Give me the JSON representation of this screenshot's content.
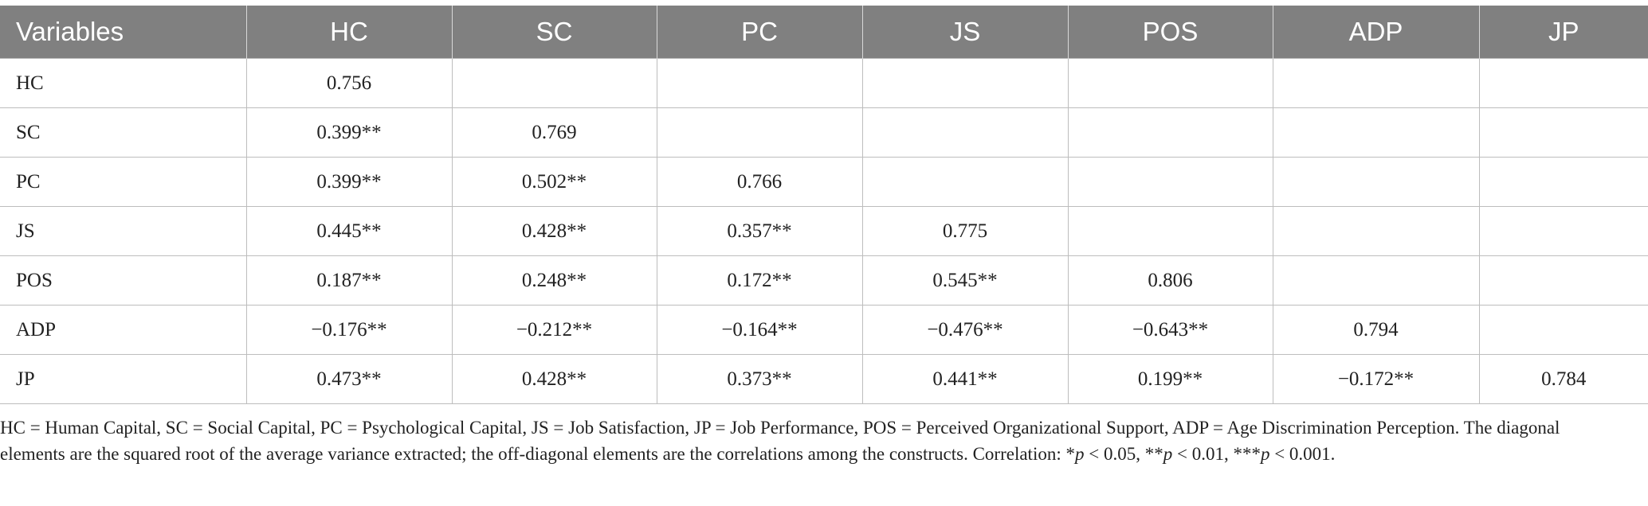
{
  "table": {
    "header": [
      "Variables",
      "HC",
      "SC",
      "PC",
      "JS",
      "POS",
      "ADP",
      "JP"
    ],
    "rows": [
      {
        "label": "HC",
        "cells": [
          "0.756"
        ]
      },
      {
        "label": "SC",
        "cells": [
          "0.399**",
          "0.769"
        ]
      },
      {
        "label": "PC",
        "cells": [
          "0.399**",
          "0.502**",
          "0.766"
        ]
      },
      {
        "label": "JS",
        "cells": [
          "0.445**",
          "0.428**",
          "0.357**",
          "0.775"
        ]
      },
      {
        "label": "POS",
        "cells": [
          "0.187**",
          "0.248**",
          "0.172**",
          "0.545**",
          "0.806"
        ]
      },
      {
        "label": "ADP",
        "cells": [
          "−0.176**",
          "−0.212**",
          "−0.164**",
          "−0.476**",
          "−0.643**",
          "0.794"
        ]
      },
      {
        "label": "JP",
        "cells": [
          "0.473**",
          "0.428**",
          "0.373**",
          "0.441**",
          "0.199**",
          "−0.172**",
          "0.784"
        ]
      }
    ]
  },
  "footnote": [
    "HC = Human Capital, SC = Social Capital, PC = Psychological Capital, JS = Job Satisfaction, JP = Job Performance, POS = Perceived Organizational Support, ADP = Age Discrimination Perception. The diagonal elements are the squared root of the average variance extracted; the off-diagonal elements are the correlations among the constructs. Correlation: *",
    "p",
    " < 0.05, **",
    "p",
    " < 0.01, ***",
    "p",
    " < 0.001."
  ]
}
